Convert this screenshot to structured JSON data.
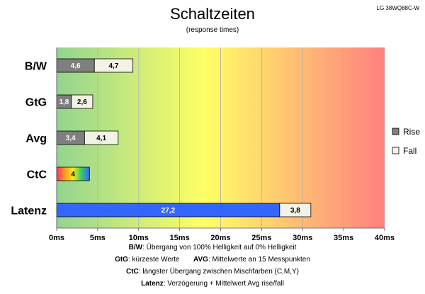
{
  "header": {
    "title": "Schaltzeiten",
    "subtitle": "(response times)",
    "model": "LG 38WQ88C-W"
  },
  "chart_data": {
    "type": "bar",
    "orientation": "horizontal",
    "stacked": true,
    "categories": [
      "B/W",
      "GtG",
      "Avg",
      "CtC",
      "Latenz"
    ],
    "series": [
      {
        "name": "Rise",
        "values": [
          4.6,
          1.8,
          3.4,
          4,
          27.2
        ]
      },
      {
        "name": "Fall",
        "values": [
          4.7,
          2.6,
          4.1,
          null,
          3.8
        ]
      }
    ],
    "value_labels": [
      [
        "4,6",
        "4,7"
      ],
      [
        "1,8",
        "2,6"
      ],
      [
        "3,4",
        "4,1"
      ],
      [
        "4",
        ""
      ],
      [
        "27,2",
        "3,8"
      ]
    ],
    "xlim": [
      0,
      40
    ],
    "xticks": [
      "0ms",
      "5ms",
      "10ms",
      "15ms",
      "20ms",
      "25ms",
      "30ms",
      "35ms",
      "40ms"
    ],
    "grid": true,
    "legend_position": "right",
    "colors": {
      "rise": "#7f7f7f",
      "fall": "#f2f2e6",
      "latenz": "#3366ff",
      "background_from": "#92d490",
      "background_mid": "#ffff66",
      "background_to": "#ff8080"
    }
  },
  "notes": [
    {
      "key": "B/W",
      "text": ":  Übergang von 100% Helligkeit auf 0% Helligkeit"
    },
    {
      "key": "GtG",
      "text": ": kürzeste  Werte",
      "key2": "AVG",
      "text2": ": Mittelwerte  an 15 Messpunkten"
    },
    {
      "key": "CtC",
      "text": ": längster Übergang  zwischen Mischfarben (C,M,Y)"
    },
    {
      "key": "Latenz",
      "text": ": Verzögerung  + Mittelwert Avg rise/fall"
    }
  ]
}
